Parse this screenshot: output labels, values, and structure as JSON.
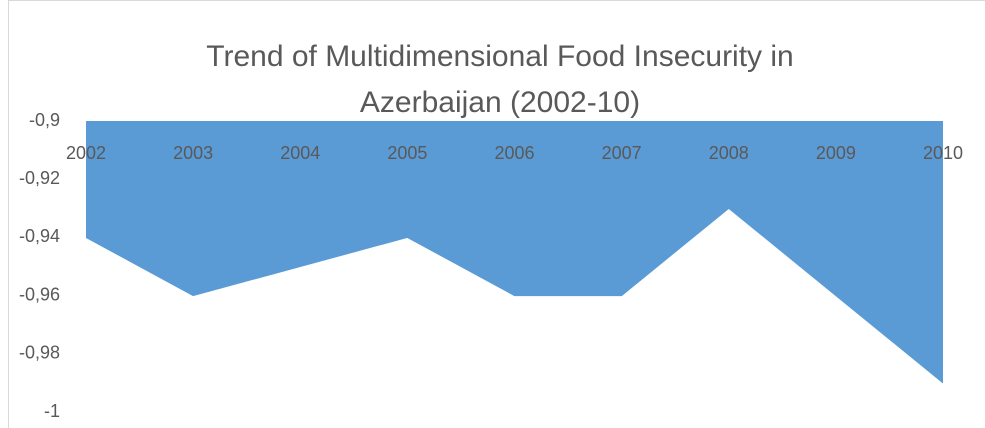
{
  "chart_data": {
    "type": "area",
    "title": "Trend of Multidimensional Food Insecurity in Azerbaijan (2002-10)",
    "categories": [
      "2002",
      "2003",
      "2004",
      "2005",
      "2006",
      "2007",
      "2008",
      "2009",
      "2010"
    ],
    "values": [
      -0.94,
      -0.96,
      -0.95,
      -0.94,
      -0.96,
      -0.96,
      -0.93,
      -0.96,
      -0.99
    ],
    "color": "#5b9bd5",
    "ylim": [
      -1,
      -0.9
    ],
    "yticks": [
      {
        "value": -0.9,
        "label": "-0,9"
      },
      {
        "value": -0.92,
        "label": "-0,92"
      },
      {
        "value": -0.94,
        "label": "-0,94"
      },
      {
        "value": -0.96,
        "label": "-0,96"
      },
      {
        "value": -0.98,
        "label": "-0,98"
      },
      {
        "value": -1,
        "label": "-1"
      }
    ],
    "grid": false
  }
}
